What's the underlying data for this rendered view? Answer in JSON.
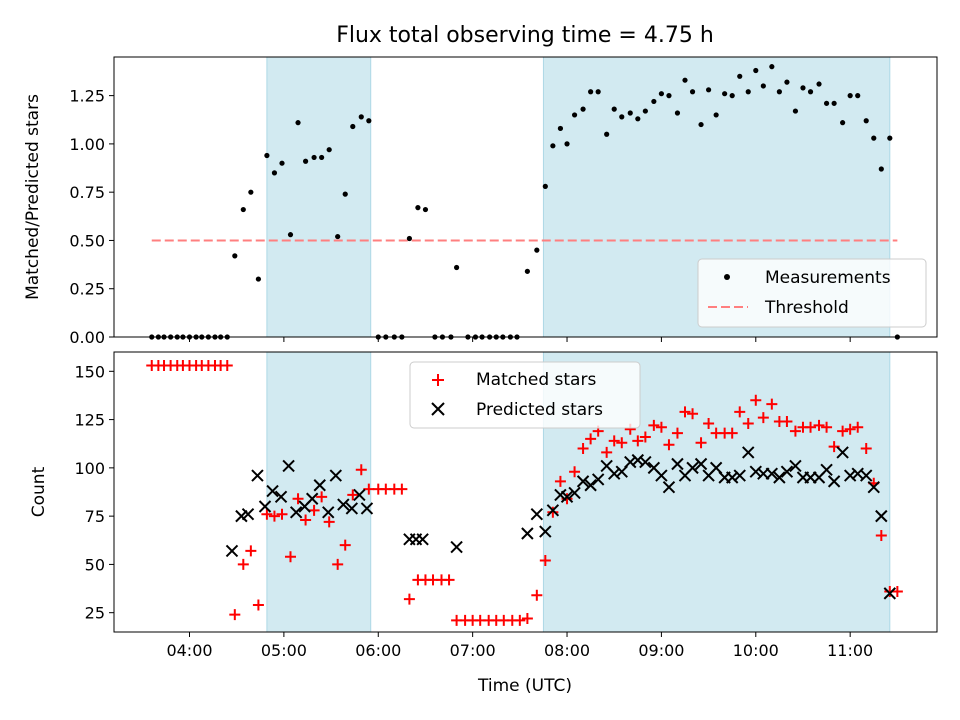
{
  "title": "Flux total observing time = 4.75 h",
  "colors": {
    "shade": "#add8e6",
    "measure": "#000000",
    "threshold": "#ff7f7f",
    "matched": "#ff0000",
    "predicted": "#000000"
  },
  "chart_data": [
    {
      "type": "scatter",
      "ylabel": "Matched/Predicted stars",
      "ylim": [
        0,
        1.45
      ],
      "yticks": [
        "0.00",
        "0.25",
        "0.50",
        "0.75",
        "1.00",
        "1.25"
      ],
      "xlim_hours": [
        3.2,
        11.92
      ],
      "shaded_hours": [
        [
          4.82,
          5.92
        ],
        [
          7.75,
          11.42
        ]
      ],
      "threshold": {
        "value": 0.5,
        "x_hours": [
          3.6,
          11.5
        ]
      },
      "legend": {
        "position": "lower-right",
        "entries": [
          "Measurements",
          "Threshold"
        ]
      },
      "series": [
        {
          "name": "Measurements",
          "points": [
            [
              3.6,
              0
            ],
            [
              3.67,
              0
            ],
            [
              3.73,
              0
            ],
            [
              3.8,
              0
            ],
            [
              3.87,
              0
            ],
            [
              3.93,
              0
            ],
            [
              4.0,
              0
            ],
            [
              4.07,
              0
            ],
            [
              4.13,
              0
            ],
            [
              4.2,
              0
            ],
            [
              4.27,
              0
            ],
            [
              4.33,
              0
            ],
            [
              4.4,
              0
            ],
            [
              4.48,
              0.42
            ],
            [
              4.57,
              0.66
            ],
            [
              4.65,
              0.75
            ],
            [
              4.73,
              0.3
            ],
            [
              4.82,
              0.94
            ],
            [
              4.9,
              0.85
            ],
            [
              4.98,
              0.9
            ],
            [
              5.07,
              0.53
            ],
            [
              5.15,
              1.11
            ],
            [
              5.23,
              0.91
            ],
            [
              5.32,
              0.93
            ],
            [
              5.4,
              0.93
            ],
            [
              5.48,
              0.97
            ],
            [
              5.57,
              0.52
            ],
            [
              5.65,
              0.74
            ],
            [
              5.73,
              1.09
            ],
            [
              5.82,
              1.14
            ],
            [
              5.9,
              1.12
            ],
            [
              6.0,
              0
            ],
            [
              6.08,
              0
            ],
            [
              6.17,
              0
            ],
            [
              6.25,
              0
            ],
            [
              6.33,
              0.51
            ],
            [
              6.42,
              0.67
            ],
            [
              6.5,
              0.66
            ],
            [
              6.6,
              0
            ],
            [
              6.68,
              0
            ],
            [
              6.77,
              0
            ],
            [
              6.83,
              0.36
            ],
            [
              6.95,
              0
            ],
            [
              7.03,
              0
            ],
            [
              7.1,
              0
            ],
            [
              7.18,
              0
            ],
            [
              7.25,
              0
            ],
            [
              7.32,
              0
            ],
            [
              7.4,
              0
            ],
            [
              7.47,
              0
            ],
            [
              7.58,
              0.34
            ],
            [
              7.68,
              0.45
            ],
            [
              7.77,
              0.78
            ],
            [
              7.85,
              0.99
            ],
            [
              7.93,
              1.08
            ],
            [
              8.0,
              1.0
            ],
            [
              8.08,
              1.15
            ],
            [
              8.17,
              1.18
            ],
            [
              8.25,
              1.27
            ],
            [
              8.33,
              1.27
            ],
            [
              8.42,
              1.05
            ],
            [
              8.5,
              1.18
            ],
            [
              8.58,
              1.14
            ],
            [
              8.67,
              1.16
            ],
            [
              8.75,
              1.13
            ],
            [
              8.83,
              1.17
            ],
            [
              8.92,
              1.22
            ],
            [
              9.0,
              1.26
            ],
            [
              9.08,
              1.25
            ],
            [
              9.17,
              1.16
            ],
            [
              9.25,
              1.33
            ],
            [
              9.33,
              1.27
            ],
            [
              9.42,
              1.1
            ],
            [
              9.5,
              1.28
            ],
            [
              9.58,
              1.15
            ],
            [
              9.67,
              1.26
            ],
            [
              9.75,
              1.25
            ],
            [
              9.83,
              1.35
            ],
            [
              9.92,
              1.27
            ],
            [
              10.0,
              1.38
            ],
            [
              10.08,
              1.3
            ],
            [
              10.17,
              1.4
            ],
            [
              10.25,
              1.27
            ],
            [
              10.33,
              1.32
            ],
            [
              10.42,
              1.17
            ],
            [
              10.5,
              1.29
            ],
            [
              10.58,
              1.27
            ],
            [
              10.67,
              1.31
            ],
            [
              10.75,
              1.21
            ],
            [
              10.83,
              1.21
            ],
            [
              10.92,
              1.11
            ],
            [
              11.0,
              1.25
            ],
            [
              11.08,
              1.25
            ],
            [
              11.17,
              1.12
            ],
            [
              11.25,
              1.03
            ],
            [
              11.33,
              0.87
            ],
            [
              11.42,
              1.03
            ],
            [
              11.5,
              0
            ]
          ]
        }
      ]
    },
    {
      "type": "scatter",
      "xlabel": "Time (UTC)",
      "ylabel": "Count",
      "ylim": [
        15,
        160
      ],
      "yticks": [
        "25",
        "50",
        "75",
        "100",
        "125",
        "150"
      ],
      "xlim_hours": [
        3.2,
        11.92
      ],
      "xticks": [
        "04:00",
        "05:00",
        "06:00",
        "07:00",
        "08:00",
        "09:00",
        "10:00",
        "11:00"
      ],
      "shaded_hours": [
        [
          4.82,
          5.92
        ],
        [
          7.75,
          11.42
        ]
      ],
      "legend": {
        "position": "upper-center",
        "entries": [
          "Matched stars",
          "Predicted stars"
        ]
      },
      "series": [
        {
          "name": "Matched stars",
          "points": [
            [
              3.6,
              153
            ],
            [
              3.67,
              153
            ],
            [
              3.73,
              153
            ],
            [
              3.8,
              153
            ],
            [
              3.87,
              153
            ],
            [
              3.93,
              153
            ],
            [
              4.0,
              153
            ],
            [
              4.07,
              153
            ],
            [
              4.13,
              153
            ],
            [
              4.2,
              153
            ],
            [
              4.27,
              153
            ],
            [
              4.33,
              153
            ],
            [
              4.4,
              153
            ],
            [
              4.48,
              24
            ],
            [
              4.57,
              50
            ],
            [
              4.65,
              57
            ],
            [
              4.73,
              29
            ],
            [
              4.82,
              76
            ],
            [
              4.9,
              75
            ],
            [
              4.98,
              76
            ],
            [
              5.07,
              54
            ],
            [
              5.15,
              84
            ],
            [
              5.23,
              73
            ],
            [
              5.32,
              78
            ],
            [
              5.4,
              85
            ],
            [
              5.48,
              72
            ],
            [
              5.57,
              50
            ],
            [
              5.65,
              60
            ],
            [
              5.73,
              86
            ],
            [
              5.82,
              99
            ],
            [
              5.9,
              89
            ],
            [
              6.0,
              89
            ],
            [
              6.08,
              89
            ],
            [
              6.17,
              89
            ],
            [
              6.25,
              89
            ],
            [
              6.33,
              32
            ],
            [
              6.42,
              42
            ],
            [
              6.5,
              42
            ],
            [
              6.58,
              42
            ],
            [
              6.67,
              42
            ],
            [
              6.75,
              42
            ],
            [
              6.83,
              21
            ],
            [
              6.92,
              21
            ],
            [
              7.0,
              21
            ],
            [
              7.08,
              21
            ],
            [
              7.17,
              21
            ],
            [
              7.25,
              21
            ],
            [
              7.33,
              21
            ],
            [
              7.42,
              21
            ],
            [
              7.5,
              21
            ],
            [
              7.58,
              22
            ],
            [
              7.68,
              34
            ],
            [
              7.77,
              52
            ],
            [
              7.85,
              77
            ],
            [
              7.93,
              93
            ],
            [
              8.0,
              84
            ],
            [
              8.08,
              98
            ],
            [
              8.17,
              110
            ],
            [
              8.25,
              115
            ],
            [
              8.33,
              119
            ],
            [
              8.42,
              108
            ],
            [
              8.5,
              114
            ],
            [
              8.58,
              113
            ],
            [
              8.67,
              120
            ],
            [
              8.75,
              114
            ],
            [
              8.83,
              116
            ],
            [
              8.92,
              122
            ],
            [
              9.0,
              121
            ],
            [
              9.08,
              112
            ],
            [
              9.17,
              118
            ],
            [
              9.25,
              129
            ],
            [
              9.33,
              128
            ],
            [
              9.42,
              113
            ],
            [
              9.5,
              123
            ],
            [
              9.58,
              118
            ],
            [
              9.67,
              118
            ],
            [
              9.75,
              118
            ],
            [
              9.83,
              129
            ],
            [
              9.92,
              123
            ],
            [
              10.0,
              135
            ],
            [
              10.08,
              126
            ],
            [
              10.17,
              133
            ],
            [
              10.25,
              124
            ],
            [
              10.33,
              124
            ],
            [
              10.42,
              119
            ],
            [
              10.5,
              121
            ],
            [
              10.58,
              121
            ],
            [
              10.67,
              122
            ],
            [
              10.75,
              121
            ],
            [
              10.83,
              111
            ],
            [
              10.92,
              119
            ],
            [
              11.0,
              120
            ],
            [
              11.08,
              121
            ],
            [
              11.17,
              110
            ],
            [
              11.25,
              92
            ],
            [
              11.33,
              65
            ],
            [
              11.42,
              36
            ],
            [
              11.5,
              36
            ]
          ]
        },
        {
          "name": "Predicted stars",
          "points": [
            [
              4.45,
              57
            ],
            [
              4.55,
              75
            ],
            [
              4.62,
              76
            ],
            [
              4.72,
              96
            ],
            [
              4.8,
              80
            ],
            [
              4.88,
              88
            ],
            [
              4.97,
              85
            ],
            [
              5.05,
              101
            ],
            [
              5.13,
              77
            ],
            [
              5.22,
              80
            ],
            [
              5.3,
              84
            ],
            [
              5.38,
              91
            ],
            [
              5.47,
              77
            ],
            [
              5.55,
              96
            ],
            [
              5.63,
              81
            ],
            [
              5.72,
              79
            ],
            [
              5.8,
              86
            ],
            [
              5.88,
              79
            ],
            [
              6.33,
              63
            ],
            [
              6.4,
              63
            ],
            [
              6.47,
              63
            ],
            [
              6.83,
              59
            ],
            [
              7.58,
              66
            ],
            [
              7.68,
              76
            ],
            [
              7.77,
              67
            ],
            [
              7.85,
              78
            ],
            [
              7.93,
              86
            ],
            [
              8.0,
              85
            ],
            [
              8.08,
              87
            ],
            [
              8.17,
              93
            ],
            [
              8.25,
              91
            ],
            [
              8.33,
              94
            ],
            [
              8.42,
              101
            ],
            [
              8.5,
              97
            ],
            [
              8.58,
              98
            ],
            [
              8.67,
              103
            ],
            [
              8.75,
              104
            ],
            [
              8.83,
              103
            ],
            [
              8.92,
              100
            ],
            [
              9.0,
              96
            ],
            [
              9.08,
              90
            ],
            [
              9.17,
              102
            ],
            [
              9.25,
              96
            ],
            [
              9.33,
              100
            ],
            [
              9.42,
              102
            ],
            [
              9.5,
              96
            ],
            [
              9.58,
              100
            ],
            [
              9.67,
              95
            ],
            [
              9.75,
              95
            ],
            [
              9.83,
              96
            ],
            [
              9.92,
              108
            ],
            [
              10.0,
              98
            ],
            [
              10.08,
              97
            ],
            [
              10.17,
              97
            ],
            [
              10.25,
              95
            ],
            [
              10.33,
              98
            ],
            [
              10.42,
              101
            ],
            [
              10.5,
              95
            ],
            [
              10.58,
              95
            ],
            [
              10.67,
              95
            ],
            [
              10.75,
              99
            ],
            [
              10.83,
              93
            ],
            [
              10.92,
              108
            ],
            [
              11.0,
              96
            ],
            [
              11.08,
              97
            ],
            [
              11.17,
              96
            ],
            [
              11.25,
              90
            ],
            [
              11.33,
              75
            ],
            [
              11.42,
              35
            ]
          ]
        }
      ]
    }
  ]
}
